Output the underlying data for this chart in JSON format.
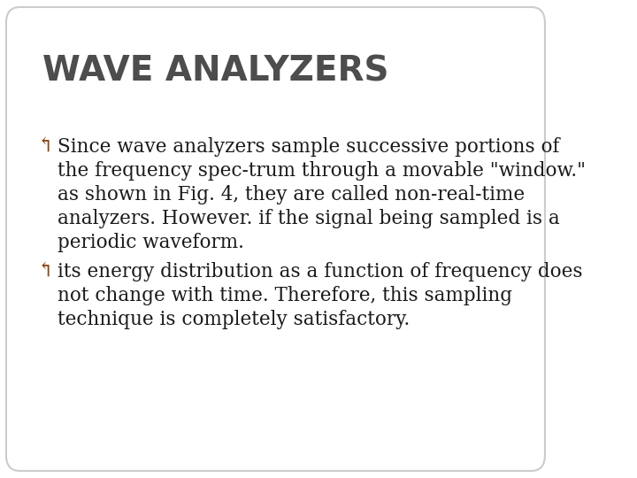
{
  "title": "WAVE ANALYZERS",
  "title_color": "#4d4d4d",
  "title_fontsize": 28,
  "title_fontweight": "bold",
  "background_color": "#ffffff",
  "border_color": "#cccccc",
  "bullet_color": "#8B4513",
  "text_color": "#1a1a1a",
  "bullet_char": "↰",
  "bullet1_line1": "Since wave analyzers sample successive portions of",
  "bullet1_line2": "the frequency spec-trum through a movable \"window.\"",
  "bullet1_line3": "as shown in Fig. 4, they are called non-real-time",
  "bullet1_line4": "analyzers. However. if the signal being sampled is a",
  "bullet1_line5": "periodic waveform.",
  "bullet2_line1": "its energy distribution as a function of frequency does",
  "bullet2_line2": "not change with time. Therefore, this sampling",
  "bullet2_line3": "technique is completely satisfactory.",
  "body_fontsize": 15.5,
  "body_font": "serif"
}
